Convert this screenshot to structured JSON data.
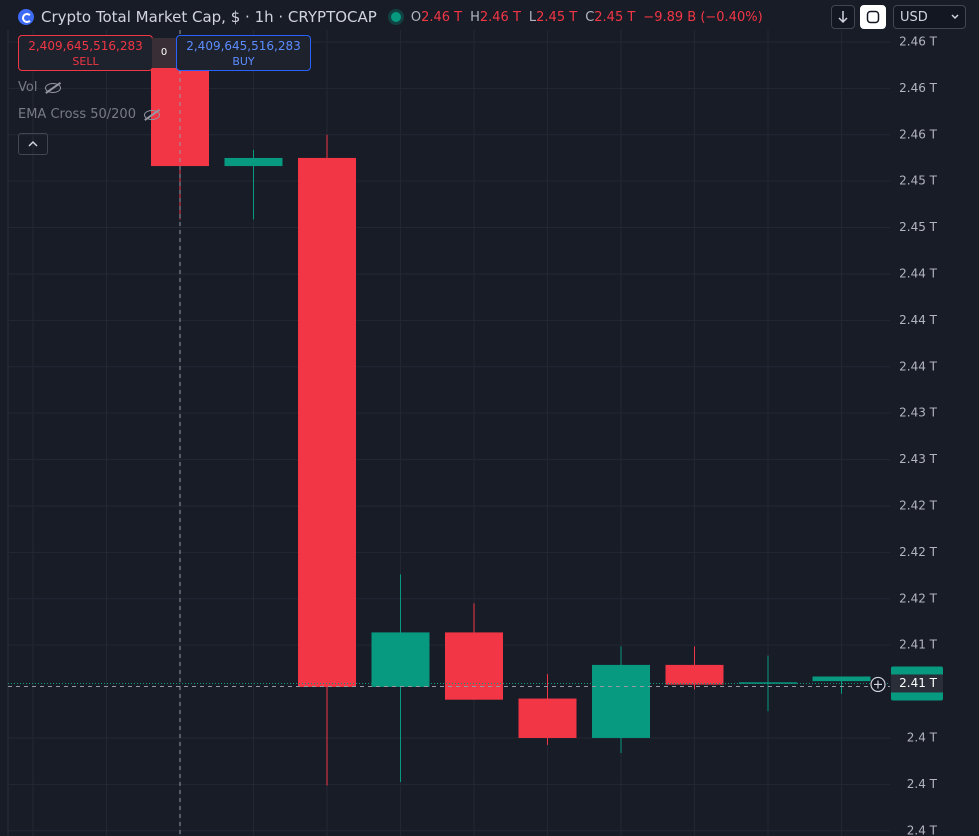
{
  "header": {
    "symbol": "Crypto Total Market Cap, $ · 1h · CRYPTOCAP",
    "ohlc": [
      {
        "key": "O",
        "value": "2.46 T"
      },
      {
        "key": "H",
        "value": "2.46 T"
      },
      {
        "key": "L",
        "value": "2.45 T"
      },
      {
        "key": "C",
        "value": "2.45 T"
      }
    ],
    "change": "−9.89 B (−0.40%)"
  },
  "toolbar": {
    "currency": "USD"
  },
  "trade": {
    "sell_price": "2,409,645,516,283",
    "sell_label": "SELL",
    "spread": "0",
    "buy_price": "2,409,645,516,283",
    "buy_label": "BUY"
  },
  "indicators": [
    "Vol",
    "EMA Cross 50/200"
  ],
  "chart_data": {
    "type": "candlestick",
    "open": [
      2.462,
      2.4533,
      2.454,
      2.4084,
      2.4131,
      2.4074,
      2.404,
      2.4103,
      2.4087,
      2.4089
    ],
    "high": [
      2.463,
      2.4547,
      2.456,
      2.4181,
      2.4156,
      2.4095,
      2.4119,
      2.4119,
      2.4111,
      2.4093
    ],
    "low": [
      2.4487,
      2.4487,
      2.3999,
      2.4002,
      2.4073,
      2.4034,
      2.4027,
      2.4082,
      2.4063,
      2.4078
    ],
    "close": [
      2.4533,
      2.454,
      2.4084,
      2.4131,
      2.4073,
      2.404,
      2.4103,
      2.4086,
      2.4088,
      2.4093
    ],
    "up_color": "#089981",
    "down_color": "#f23645",
    "ylim": [
      2.39555,
      2.46503
    ],
    "yticks": [
      {
        "value": 2.464,
        "label": "2.46 T"
      },
      {
        "value": 2.46,
        "label": "2.46 T"
      },
      {
        "value": 2.456,
        "label": "2.46 T"
      },
      {
        "value": 2.452,
        "label": "2.45 T"
      },
      {
        "value": 2.448,
        "label": "2.45 T"
      },
      {
        "value": 2.444,
        "label": "2.44 T"
      },
      {
        "value": 2.44,
        "label": "2.44 T"
      },
      {
        "value": 2.436,
        "label": "2.44 T"
      },
      {
        "value": 2.432,
        "label": "2.43 T"
      },
      {
        "value": 2.428,
        "label": "2.43 T"
      },
      {
        "value": 2.424,
        "label": "2.42 T"
      },
      {
        "value": 2.42,
        "label": "2.42 T"
      },
      {
        "value": 2.416,
        "label": "2.42 T"
      },
      {
        "value": 2.412,
        "label": "2.41 T"
      },
      {
        "value": 2.404,
        "label": "2.4 T"
      },
      {
        "value": 2.4,
        "label": "2.4 T"
      },
      {
        "value": 2.396,
        "label": "2.4 T"
      }
    ],
    "last_value": {
      "value": 2.4087,
      "label": "2.41 T"
    },
    "grid": true
  }
}
